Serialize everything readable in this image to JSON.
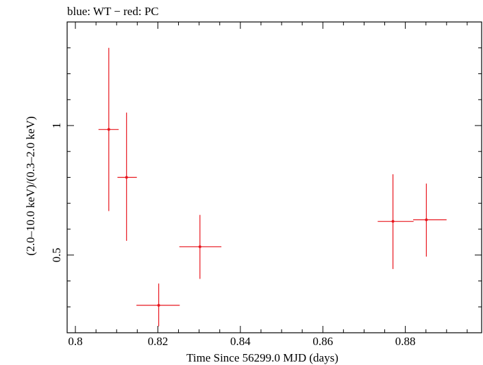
{
  "chart_data": {
    "type": "scatter",
    "title": "blue: WT − red: PC",
    "xlabel": "Time Since 56299.0 MJD (days)",
    "ylabel": "(2.0–10.0 keV)/(0.3–2.0 keV)",
    "xlim": [
      0.798,
      0.8985
    ],
    "ylim": [
      0.2,
      1.4
    ],
    "x_ticks": [
      0.8,
      0.82,
      0.84,
      0.86,
      0.88
    ],
    "x_tick_labels": [
      "0.8",
      "0.82",
      "0.84",
      "0.86",
      "0.88"
    ],
    "y_ticks": [
      0.5,
      1
    ],
    "y_tick_labels": [
      "0.5",
      "1"
    ],
    "grid": false,
    "colors": {
      "PC": "#e8141c",
      "axis": "#000000"
    },
    "series": [
      {
        "name": "PC",
        "points": [
          {
            "x": 0.8081,
            "y": 0.985,
            "x_lo": 0.8056,
            "x_hi": 0.8105,
            "y_lo": 0.67,
            "y_hi": 1.3
          },
          {
            "x": 0.8124,
            "y": 0.8,
            "x_lo": 0.8102,
            "x_hi": 0.8149,
            "y_lo": 0.555,
            "y_hi": 1.05
          },
          {
            "x": 0.8202,
            "y": 0.306,
            "x_lo": 0.8148,
            "x_hi": 0.8253,
            "y_lo": 0.225,
            "y_hi": 0.39
          },
          {
            "x": 0.8302,
            "y": 0.532,
            "x_lo": 0.8252,
            "x_hi": 0.8354,
            "y_lo": 0.408,
            "y_hi": 0.655
          },
          {
            "x": 0.877,
            "y": 0.63,
            "x_lo": 0.8733,
            "x_hi": 0.882,
            "y_lo": 0.446,
            "y_hi": 0.812
          },
          {
            "x": 0.8851,
            "y": 0.636,
            "x_lo": 0.8819,
            "x_hi": 0.89,
            "y_lo": 0.494,
            "y_hi": 0.776
          }
        ]
      }
    ]
  }
}
